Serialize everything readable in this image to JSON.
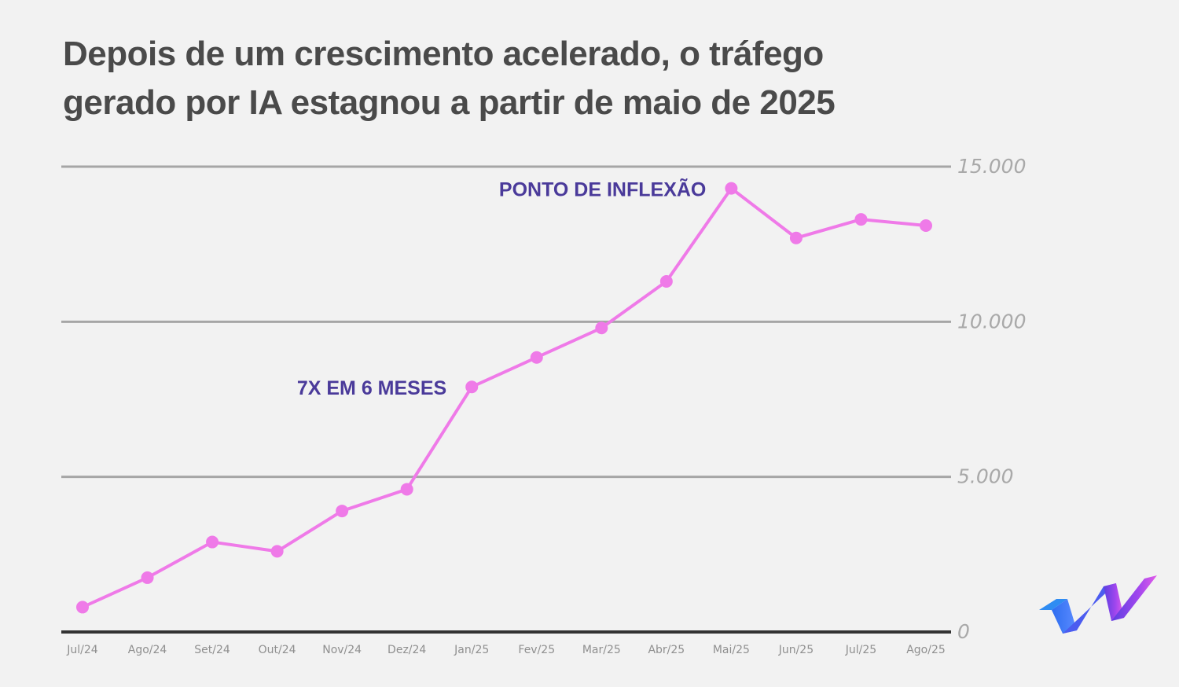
{
  "title": {
    "line1": "Depois de um crescimento acelerado, o tráfego",
    "line2": "gerado por IA estagnou a partir de maio de 2025"
  },
  "colors": {
    "background": "#f2f2f2",
    "line": "#ef7ae8",
    "grid": "#a6a6a6",
    "axis": "#333333",
    "annotation": "#4a3a9a",
    "title": "#4a4a4a"
  },
  "chart_data": {
    "type": "line",
    "title": "Depois de um crescimento acelerado, o tráfego gerado por IA estagnou a partir de maio de 2025",
    "xlabel": "",
    "ylabel": "",
    "categories": [
      "Jul/24",
      "Ago/24",
      "Set/24",
      "Out/24",
      "Nov/24",
      "Dez/24",
      "Jan/25",
      "Fev/25",
      "Mar/25",
      "Abr/25",
      "Mai/25",
      "Jun/25",
      "Jul/25",
      "Ago/25"
    ],
    "series": [
      {
        "values": [
          800,
          1750,
          2900,
          2600,
          3900,
          4600,
          7900,
          8850,
          9800,
          11300,
          14300,
          12700,
          13300,
          13100
        ]
      }
    ],
    "ylim": [
      0,
      15000
    ],
    "yticks": [
      0,
      5000,
      10000,
      15000
    ],
    "ytick_labels": [
      "0",
      "5.000",
      "10.000",
      "15.000"
    ],
    "y_axis_position": "right",
    "grid": true,
    "legend": "none",
    "annotations": [
      {
        "text": "7X EM 6 MESES",
        "category": "Jan/25"
      },
      {
        "text": "PONTO DE INFLEXÃO",
        "category": "Mai/25"
      }
    ]
  },
  "logo": {
    "icon": "brand-logo-icon"
  }
}
